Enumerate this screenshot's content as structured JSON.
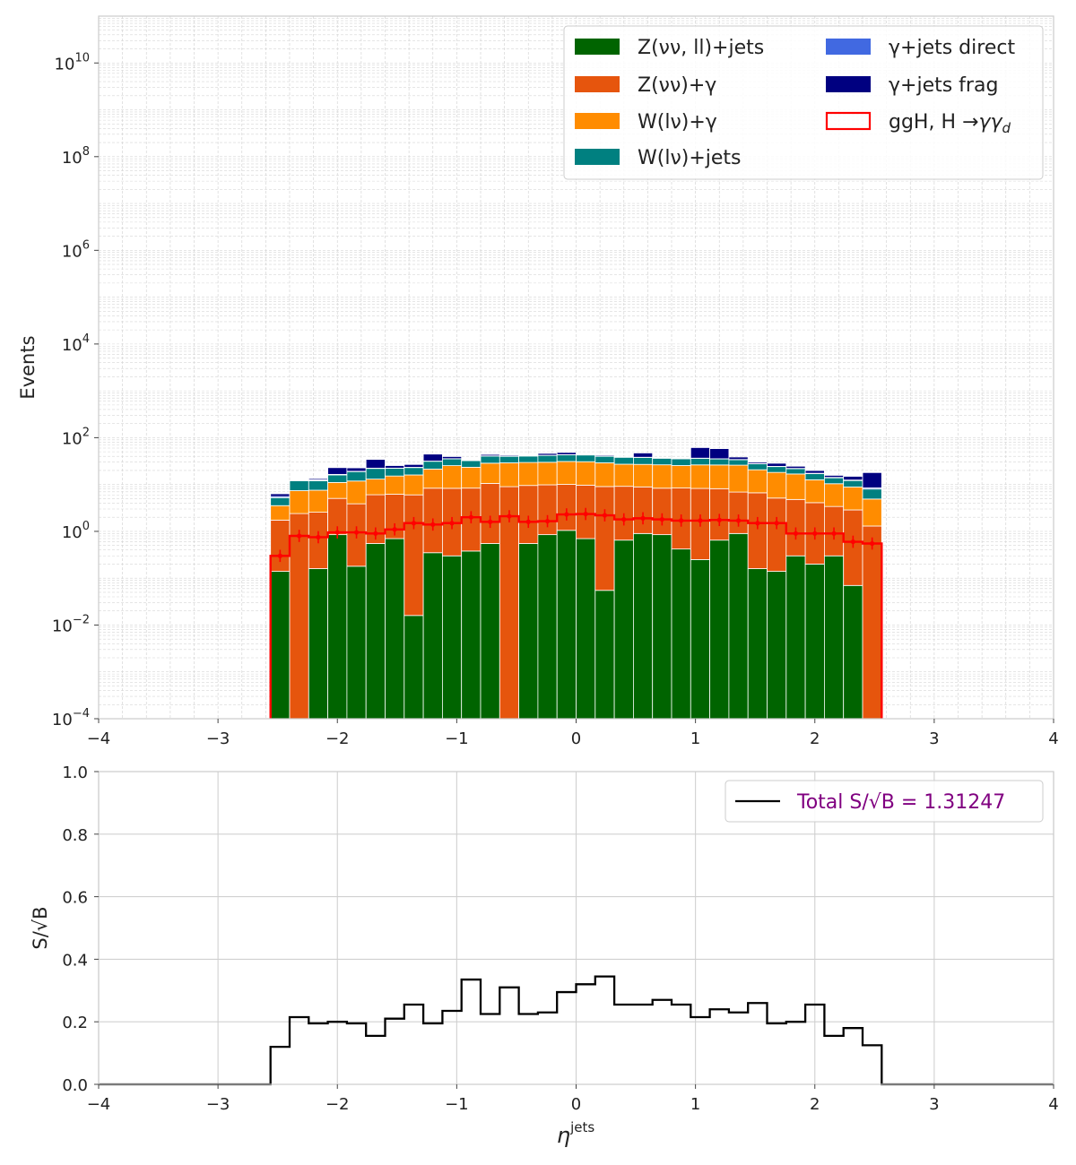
{
  "colors": {
    "z_jets": "#006400",
    "z_gamma": "#e6550d",
    "w_gamma": "#ff8c00",
    "w_jets": "#008080",
    "gjets_direct": "#4169e1",
    "gjets_frag": "#000080",
    "signal": "#ff0000",
    "ratio": "#000000",
    "total_text": "#800080"
  },
  "chart_data": [
    {
      "type": "bar",
      "stacked": true,
      "log_scale_y": true,
      "ylabel": "Events",
      "xlim": [
        -4,
        4
      ],
      "ylim": [
        0.0001,
        100000000000
      ],
      "grid": "on",
      "legend_placement": "top-right",
      "x_ticks": [
        "−4",
        "−3",
        "−2",
        "−1",
        "0",
        "1",
        "2",
        "3",
        "4"
      ],
      "y_ticks": [
        {
          "base": "10",
          "exp": "−4",
          "value": 0.0001
        },
        {
          "base": "10",
          "exp": "−2",
          "value": 0.01
        },
        {
          "base": "10",
          "exp": "0",
          "value": 1
        },
        {
          "base": "10",
          "exp": "2",
          "value": 100
        },
        {
          "base": "10",
          "exp": "4",
          "value": 10000
        },
        {
          "base": "10",
          "exp": "6",
          "value": 1000000
        },
        {
          "base": "10",
          "exp": "8",
          "value": 100000000
        },
        {
          "base": "10",
          "exp": "10",
          "value": 10000000000
        }
      ],
      "bin_edges": [
        -2.56,
        -2.4,
        -2.24,
        -2.08,
        -1.92,
        -1.76,
        -1.6,
        -1.44,
        -1.28,
        -1.12,
        -0.96,
        -0.8,
        -0.64,
        -0.48,
        -0.32,
        -0.16,
        0,
        0.16,
        0.32,
        0.48,
        0.64,
        0.8,
        0.96,
        1.12,
        1.28,
        1.44,
        1.6,
        1.76,
        1.92,
        2.08,
        2.24,
        2.4,
        2.56
      ],
      "series": [
        {
          "name": "Z(νν, ll)+jets",
          "color_key": "z_jets",
          "values": [
            0.14,
            0,
            0.16,
            0.85,
            0.18,
            0.55,
            0.7,
            0.016,
            0.35,
            0.3,
            0.38,
            0.55,
            0,
            0.55,
            0.85,
            1.05,
            0.7,
            0.055,
            0.65,
            0.9,
            0.85,
            0.42,
            0.25,
            0.65,
            0.9,
            0.16,
            0.14,
            0.3,
            0.2,
            0.3,
            0.07,
            0
          ]
        },
        {
          "name": "Z(νν)+γ",
          "color_key": "z_gamma",
          "values": [
            1.6,
            2.4,
            2.4,
            4.2,
            3.7,
            5.5,
            5.5,
            6.0,
            8.0,
            8.0,
            8.0,
            10.0,
            9.0,
            9.0,
            9.0,
            9.0,
            9.0,
            9.0,
            8.5,
            8.0,
            7.5,
            8.0,
            8.0,
            7.5,
            6.0,
            6.5,
            5.0,
            4.5,
            3.9,
            3.1,
            2.8,
            1.3
          ]
        },
        {
          "name": "W(lν)+γ",
          "color_key": "w_gamma",
          "values": [
            1.8,
            5.0,
            5.0,
            6.0,
            8.0,
            7.0,
            9.0,
            10.0,
            13.0,
            17.0,
            15.0,
            18.0,
            20.0,
            20.0,
            20.0,
            21.0,
            21.0,
            20.0,
            18.0,
            18.0,
            18.0,
            17.0,
            18.0,
            18.0,
            19.0,
            14.0,
            13.0,
            12.0,
            8.5,
            7.0,
            6.0,
            3.6
          ]
        },
        {
          "name": "W(lν)+jets",
          "color_key": "w_jets",
          "values": [
            1.7,
            4.6,
            4.5,
            5.0,
            7.0,
            9.0,
            7.0,
            7.0,
            10.0,
            10.0,
            9.0,
            12.0,
            11.0,
            11.0,
            12.0,
            12.0,
            12.0,
            11.0,
            11.0,
            11.0,
            10.0,
            10.0,
            10.0,
            9.0,
            8.0,
            7.0,
            6.0,
            5.0,
            4.5,
            3.5,
            3.3,
            3.1
          ]
        },
        {
          "name": "γ+jets direct",
          "color_key": "gjets_direct",
          "values": [
            0.3,
            0,
            0.5,
            0.4,
            0.3,
            0.3,
            0.2,
            0.3,
            0.3,
            0.3,
            0.3,
            0.3,
            0.3,
            0.3,
            0.3,
            0.3,
            0.3,
            0.3,
            0.3,
            0.3,
            0.3,
            0.3,
            0.3,
            0.3,
            0.3,
            0.3,
            0.3,
            0.3,
            0.3,
            0.3,
            0.3,
            0.5
          ]
        },
        {
          "name": "γ+jets frag",
          "color_key": "gjets_frag",
          "values": [
            0.8,
            0,
            0.8,
            6.5,
            3.5,
            12.0,
            3.0,
            3.5,
            13.0,
            4.0,
            0,
            3.0,
            2.0,
            0,
            4.0,
            5.0,
            0,
            2.0,
            1.0,
            9.0,
            0,
            0,
            25.0,
            23.0,
            4.5,
            2.0,
            4.0,
            2.5,
            2.5,
            1.5,
            2.5,
            9.5
          ]
        }
      ],
      "signal": {
        "name": "ggH, H→γγ_d",
        "label_plain": "ggH, H",
        "arrow": "→",
        "label_greek": "γγ",
        "label_sub": "d",
        "color_key": "signal",
        "values": [
          0.3,
          0.8,
          0.75,
          0.95,
          0.95,
          0.9,
          1.1,
          1.5,
          1.4,
          1.5,
          2.0,
          1.6,
          2.1,
          1.6,
          1.65,
          2.3,
          2.35,
          2.2,
          1.8,
          1.9,
          1.8,
          1.7,
          1.7,
          1.75,
          1.7,
          1.5,
          1.5,
          0.9,
          0.9,
          0.9,
          0.6,
          0.55
        ]
      },
      "legend_columns": [
        [
          "z_jets",
          "z_gamma",
          "w_gamma",
          "w_jets"
        ],
        [
          "gjets_direct",
          "gjets_frag",
          "signal"
        ]
      ]
    },
    {
      "type": "line",
      "ylabel": "S/√B",
      "xlabel": "η",
      "xlabel_sup": "jets",
      "xlim": [
        -4,
        4
      ],
      "ylim": [
        0,
        1.0
      ],
      "grid": "on",
      "legend_placement": "top-right",
      "legend_text": "Total S/√B = 1.31247",
      "x_ticks": [
        "−4",
        "−3",
        "−2",
        "−1",
        "0",
        "1",
        "2",
        "3",
        "4"
      ],
      "y_ticks": [
        "0.0",
        "0.2",
        "0.4",
        "0.6",
        "0.8",
        "1.0"
      ],
      "bin_edges": [
        -2.56,
        -2.4,
        -2.24,
        -2.08,
        -1.92,
        -1.76,
        -1.6,
        -1.44,
        -1.28,
        -1.12,
        -0.96,
        -0.8,
        -0.64,
        -0.48,
        -0.32,
        -0.16,
        0,
        0.16,
        0.32,
        0.48,
        0.64,
        0.8,
        0.96,
        1.12,
        1.28,
        1.44,
        1.6,
        1.76,
        1.92,
        2.08,
        2.24,
        2.4,
        2.56
      ],
      "values": [
        0.12,
        0.215,
        0.195,
        0.2,
        0.195,
        0.155,
        0.21,
        0.255,
        0.195,
        0.235,
        0.335,
        0.225,
        0.31,
        0.225,
        0.23,
        0.295,
        0.32,
        0.345,
        0.255,
        0.255,
        0.27,
        0.255,
        0.215,
        0.24,
        0.23,
        0.26,
        0.195,
        0.2,
        0.255,
        0.155,
        0.18,
        0.125
      ]
    }
  ]
}
